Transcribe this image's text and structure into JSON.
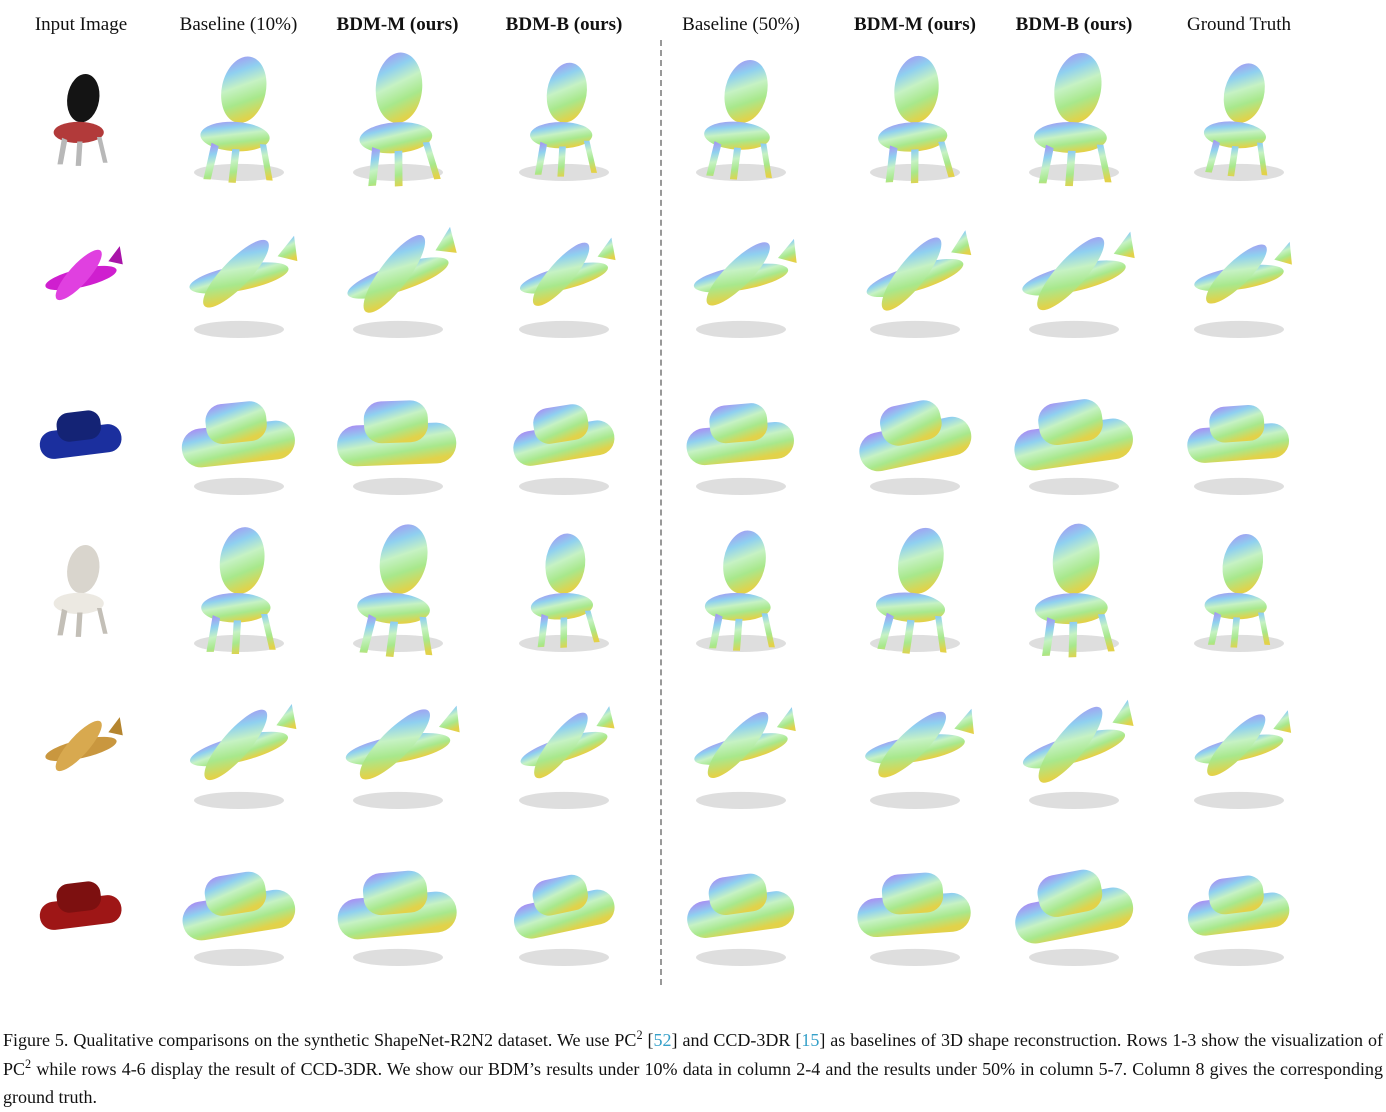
{
  "header": {
    "columns": [
      {
        "key": "input-image",
        "label": "Input Image",
        "bold": false
      },
      {
        "key": "baseline-10",
        "label": "Baseline (10%)",
        "bold": false
      },
      {
        "key": "bdm-m-10",
        "label": "BDM-M (ours)",
        "bold": true
      },
      {
        "key": "bdm-b-10",
        "label": "BDM-B (ours)",
        "bold": true
      },
      {
        "key": "baseline-50",
        "label": "Baseline (50%)",
        "bold": false
      },
      {
        "key": "bdm-m-50",
        "label": "BDM-M (ours)",
        "bold": true
      },
      {
        "key": "bdm-b-50",
        "label": "BDM-B (ours)",
        "bold": true
      },
      {
        "key": "ground-truth",
        "label": "Ground Truth",
        "bold": false
      }
    ]
  },
  "grid": {
    "rows": [
      {
        "key": "row-1",
        "object": "chair",
        "description": "black office chair with red seat",
        "input_colors": [
          "#141414",
          "#b23a3a",
          "#b8b8b8"
        ]
      },
      {
        "key": "row-2",
        "object": "airplane",
        "description": "magenta airplane",
        "input_colors": [
          "#cf1fcf",
          "#e040e0",
          "#a914a9"
        ]
      },
      {
        "key": "row-3",
        "object": "car",
        "description": "blue pickup truck",
        "input_colors": [
          "#1b2f9e",
          "#142375"
        ]
      },
      {
        "key": "row-4",
        "object": "chair",
        "description": "white and gray seat",
        "input_colors": [
          "#d9d5cd",
          "#ece9e2",
          "#c3bfb7"
        ]
      },
      {
        "key": "row-5",
        "object": "airplane",
        "description": "tan fighter jet",
        "input_colors": [
          "#c9973f",
          "#d8a94f",
          "#b5852f"
        ]
      },
      {
        "key": "row-6",
        "object": "car",
        "description": "dark red car",
        "input_colors": [
          "#9e1616",
          "#7d1010"
        ]
      }
    ]
  },
  "caption": {
    "segments": [
      {
        "type": "text",
        "text": "Figure 5. Qualitative comparisons on the synthetic ShapeNet-R2N2 dataset. We use PC"
      },
      {
        "type": "sup",
        "text": "2"
      },
      {
        "type": "text",
        "text": " ["
      },
      {
        "type": "cite",
        "text": "52"
      },
      {
        "type": "text",
        "text": "] and CCD-3DR ["
      },
      {
        "type": "cite",
        "text": "15"
      },
      {
        "type": "text",
        "text": "] as baselines of 3D shape reconstruction. Rows 1-3 show the visualization of PC"
      },
      {
        "type": "sup",
        "text": "2"
      },
      {
        "type": "text",
        "text": " while rows 4-6 display the result of CCD-3DR. We show our BDM’s results under 10% data in column 2-4 and the results under 50% in column 5-7. Column 8 gives the corresponding ground truth."
      }
    ]
  },
  "colors": {
    "citation": "#35a0c9",
    "divider": "#999999",
    "caption_text": "#111111"
  },
  "pointcloud_palette": {
    "top": "#a98cf2",
    "upper": "#8fd0f0",
    "pink": "#f2a8e4",
    "mid": "#c6f2c4",
    "low": "#a8e88c",
    "bottom": "#e2d24a",
    "shadow": "#d6d6d6"
  }
}
